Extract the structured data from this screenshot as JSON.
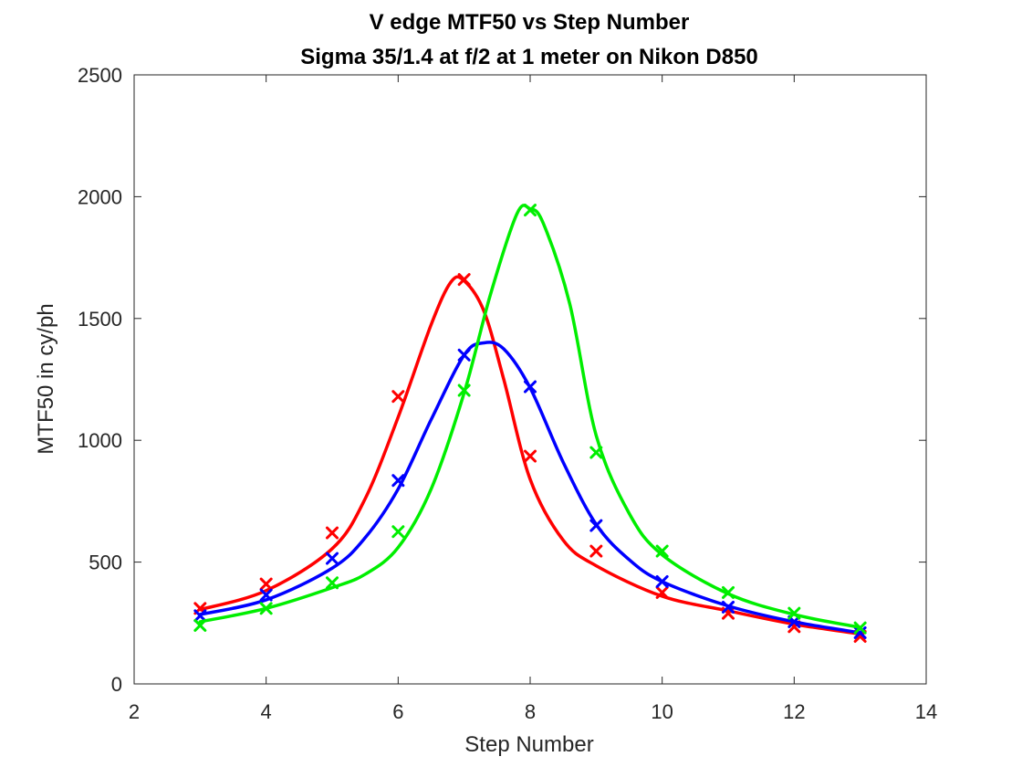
{
  "chart_data": {
    "type": "line",
    "title": "V edge MTF50 vs Step Number",
    "subtitle": "Sigma 35/1.4 at f/2 at 1 meter on Nikon D850",
    "xlabel": "Step Number",
    "ylabel": "MTF50 in cy/ph",
    "xlim": [
      2,
      14
    ],
    "ylim": [
      0,
      2500
    ],
    "xticks": [
      "2",
      "4",
      "6",
      "8",
      "10",
      "12",
      "14"
    ],
    "yticks": [
      "0",
      "500",
      "1000",
      "1500",
      "2000",
      "2500"
    ],
    "grid": false,
    "legend": "none",
    "series": [
      {
        "color": "#ff0000",
        "x": [
          3,
          4,
          5,
          6,
          7,
          8,
          9,
          10,
          11,
          12,
          13
        ],
        "points": [
          310,
          410,
          620,
          1180,
          1660,
          935,
          545,
          375,
          290,
          235,
          195
        ],
        "fit": [
          [
            3,
            305
          ],
          [
            4,
            383
          ],
          [
            5,
            555
          ],
          [
            5.5,
            760
          ],
          [
            6,
            1095
          ],
          [
            6.5,
            1475
          ],
          [
            6.8,
            1650
          ],
          [
            7,
            1655
          ],
          [
            7.3,
            1530
          ],
          [
            7.6,
            1250
          ],
          [
            8,
            840
          ],
          [
            8.5,
            590
          ],
          [
            9,
            485
          ],
          [
            10,
            360
          ],
          [
            11,
            300
          ],
          [
            12,
            245
          ],
          [
            13,
            205
          ]
        ]
      },
      {
        "color": "#0000ff",
        "x": [
          3,
          4,
          5,
          6,
          7,
          8,
          9,
          10,
          11,
          12,
          13
        ],
        "points": [
          280,
          365,
          515,
          835,
          1350,
          1220,
          650,
          420,
          315,
          255,
          210
        ],
        "fit": [
          [
            3,
            285
          ],
          [
            4,
            345
          ],
          [
            5,
            475
          ],
          [
            5.5,
            600
          ],
          [
            6,
            800
          ],
          [
            6.5,
            1085
          ],
          [
            7,
            1350
          ],
          [
            7.3,
            1400
          ],
          [
            7.6,
            1375
          ],
          [
            8,
            1215
          ],
          [
            8.5,
            910
          ],
          [
            9,
            655
          ],
          [
            9.5,
            510
          ],
          [
            10,
            420
          ],
          [
            11,
            320
          ],
          [
            12,
            255
          ],
          [
            13,
            210
          ]
        ]
      },
      {
        "color": "#00ee00",
        "x": [
          3,
          4,
          5,
          6,
          7,
          8,
          9,
          10,
          11,
          12,
          13
        ],
        "points": [
          240,
          310,
          415,
          625,
          1205,
          1945,
          950,
          545,
          375,
          290,
          230
        ],
        "fit": [
          [
            3,
            255
          ],
          [
            4,
            310
          ],
          [
            5,
            395
          ],
          [
            5.5,
            450
          ],
          [
            6,
            560
          ],
          [
            6.5,
            800
          ],
          [
            7,
            1195
          ],
          [
            7.4,
            1600
          ],
          [
            7.8,
            1930
          ],
          [
            8,
            1950
          ],
          [
            8.2,
            1890
          ],
          [
            8.6,
            1560
          ],
          [
            9,
            1020
          ],
          [
            9.5,
            700
          ],
          [
            10,
            530
          ],
          [
            11,
            370
          ],
          [
            12,
            285
          ],
          [
            13,
            232
          ]
        ]
      }
    ]
  }
}
